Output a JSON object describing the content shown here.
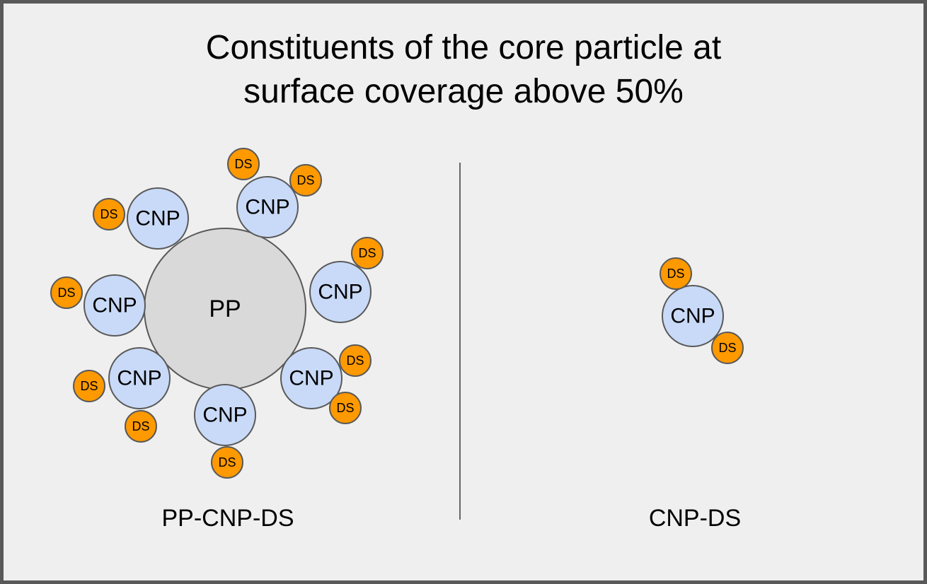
{
  "title": {
    "line1": "Constituents of the core particle at",
    "line2": "surface coverage above 50%"
  },
  "labels": {
    "pp": "PP",
    "cnp": "CNP",
    "ds": "DS"
  },
  "panels": {
    "left_caption": "PP-CNP-DS",
    "right_caption": "CNP-DS"
  },
  "colors": {
    "background": "#efefef",
    "border": "#595959",
    "pp_fill": "#d9d9d9",
    "cnp_fill": "#c9daf8",
    "ds_fill": "#ff9900",
    "outline": "#595959",
    "divider": "#666666"
  }
}
